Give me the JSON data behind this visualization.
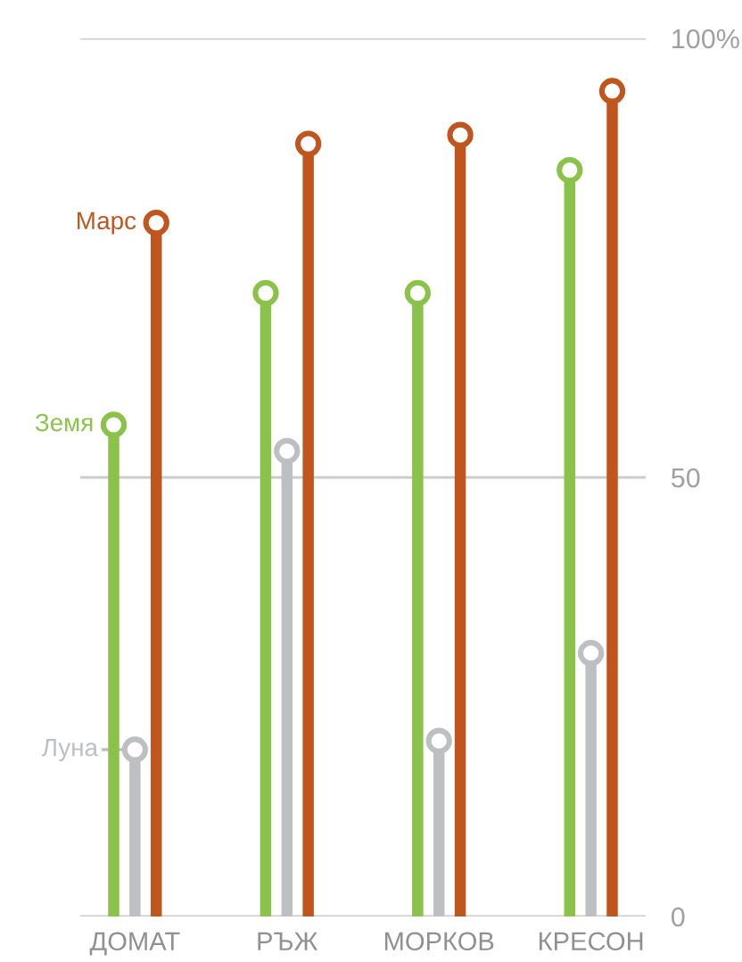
{
  "chart_data": {
    "type": "lollipop",
    "categories": [
      "ДОМАТ",
      "РЪЖ",
      "МОРКОВ",
      "КРЕСОН"
    ],
    "series": [
      {
        "name": "Земя",
        "color": "#8bc34a",
        "values": [
          56,
          71,
          71,
          85
        ]
      },
      {
        "name": "Луна",
        "color": "#bdc0c3",
        "values": [
          19,
          53,
          20,
          30
        ]
      },
      {
        "name": "Марс",
        "color": "#c0561d",
        "values": [
          79,
          88,
          89,
          94
        ]
      }
    ],
    "ylim": [
      0,
      100
    ],
    "yticks": [
      0,
      50,
      {
        "value": 100,
        "label": "100%"
      }
    ],
    "grid": "y",
    "marker": "circle",
    "legend": "left"
  }
}
